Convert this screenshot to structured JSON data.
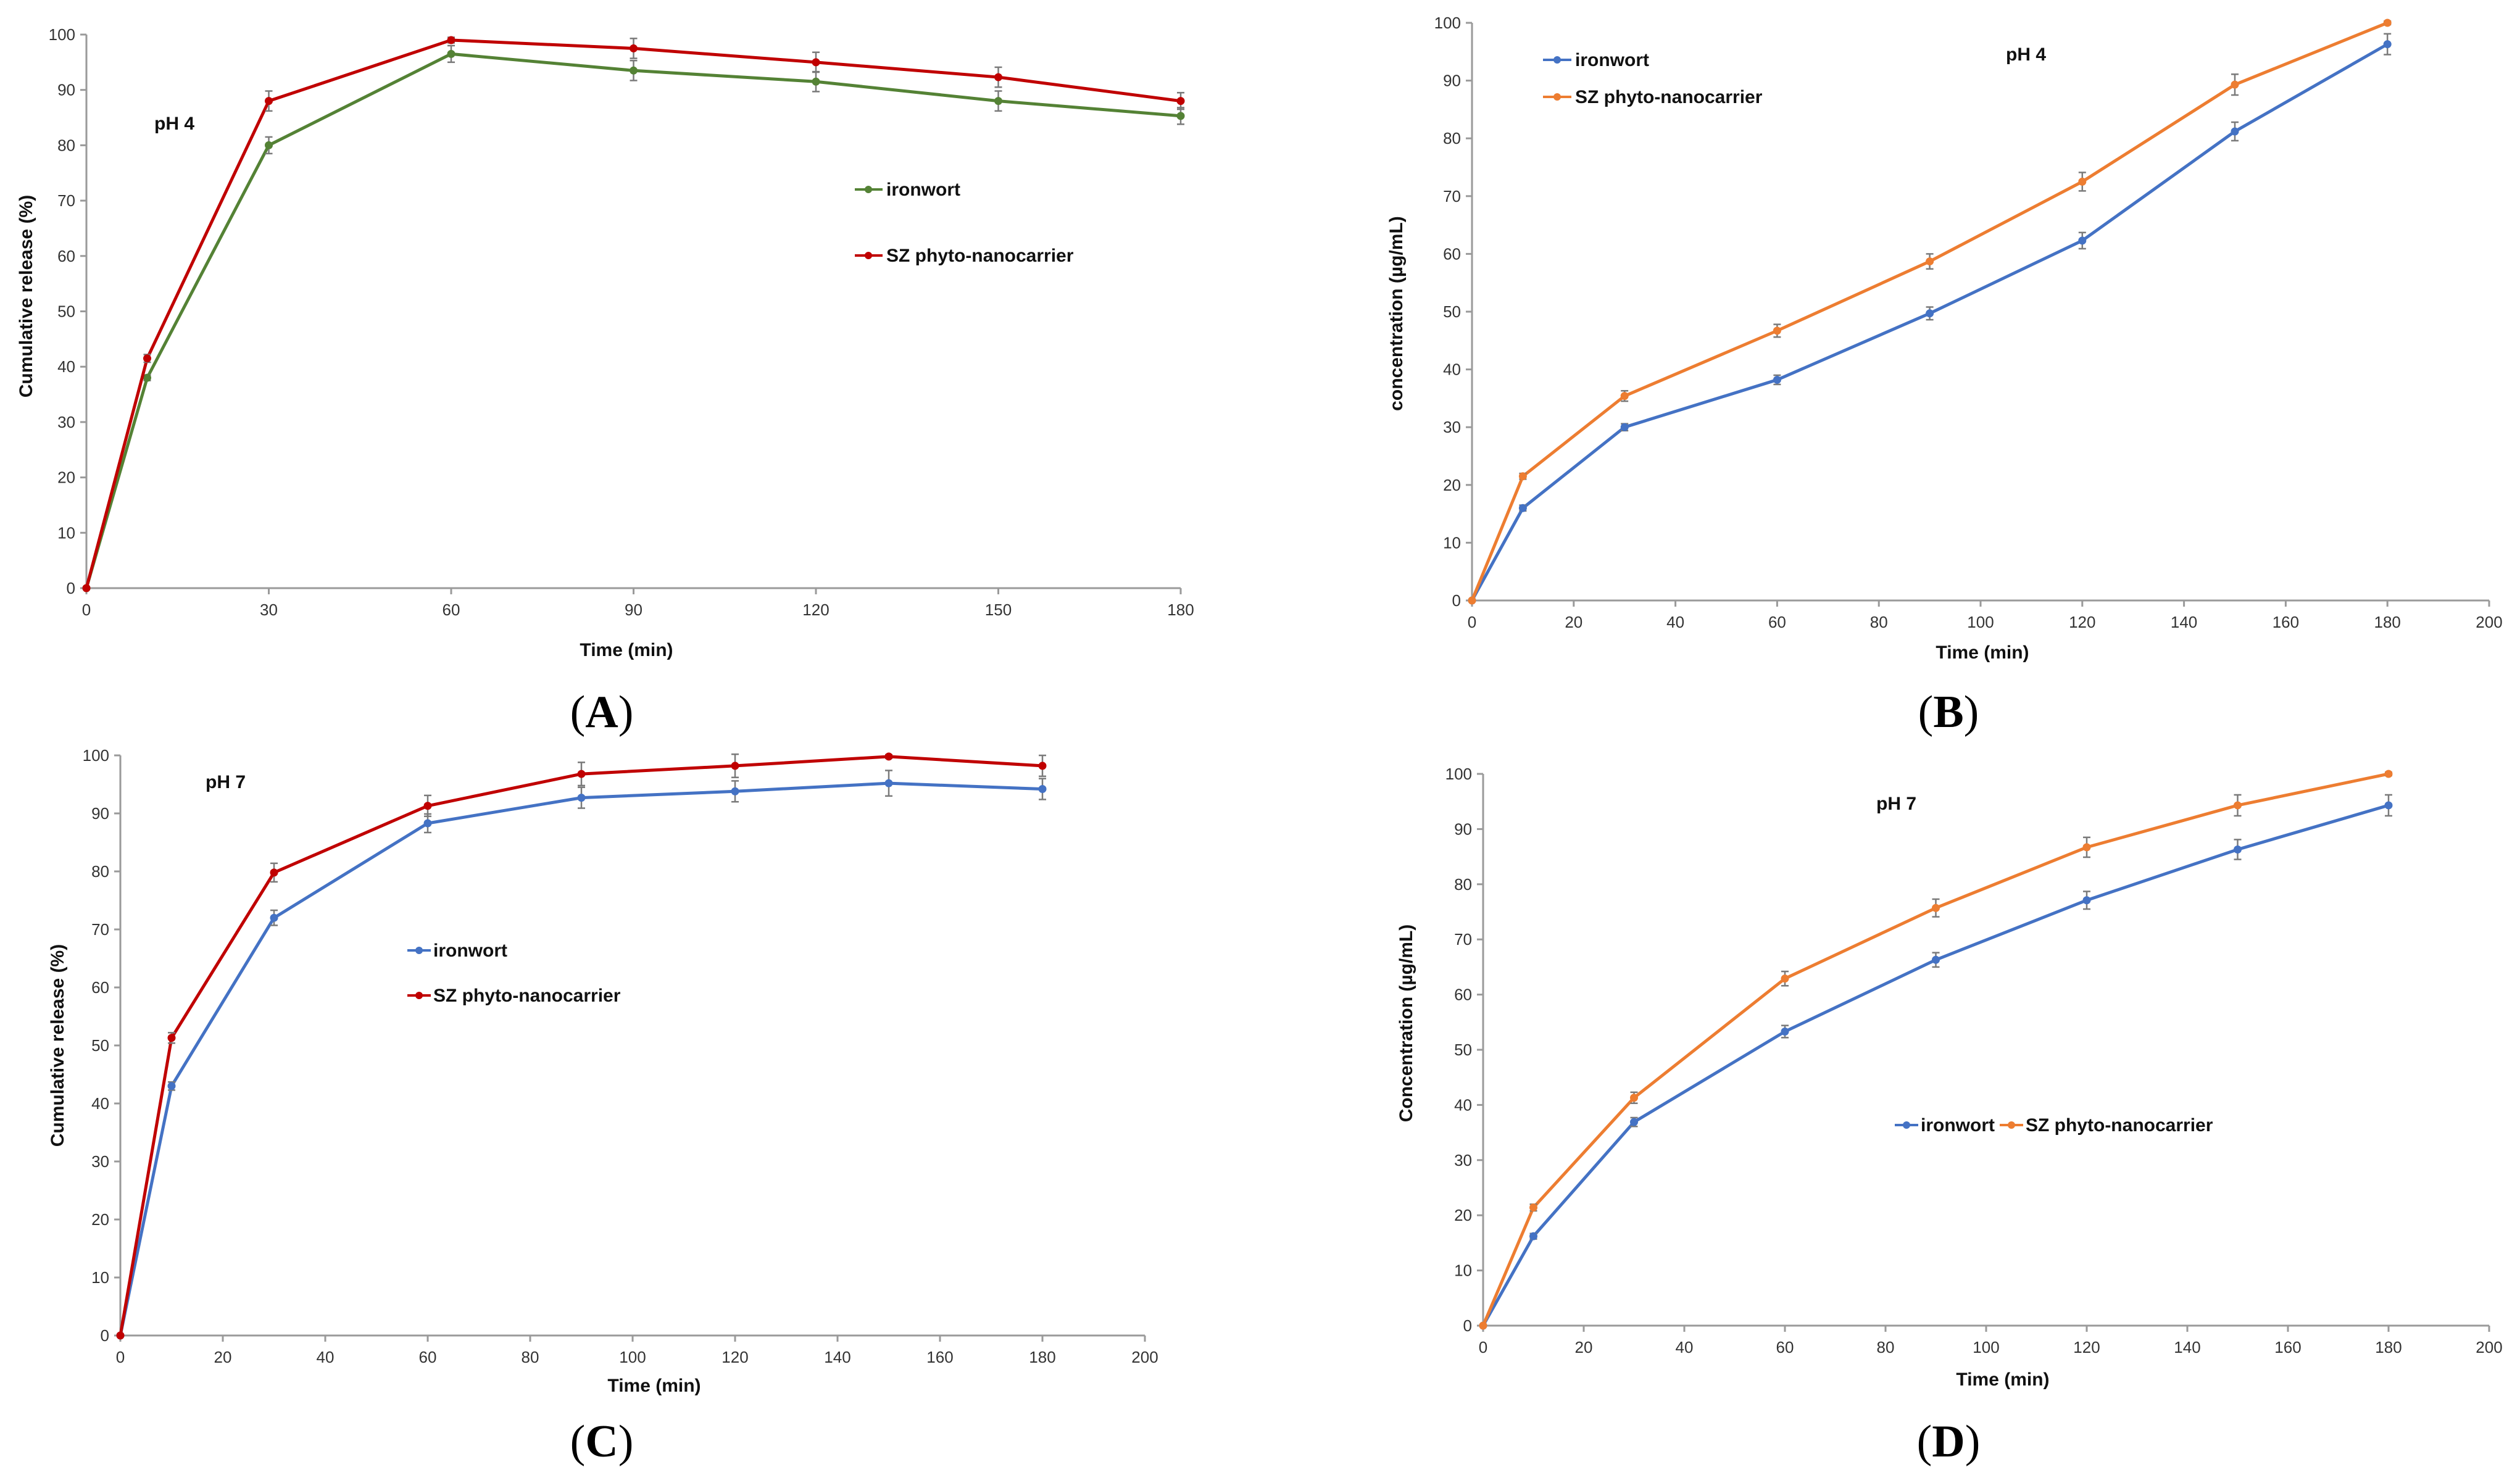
{
  "figure": {
    "panel_labels": [
      "A",
      "B",
      "C",
      "D"
    ]
  },
  "chart_data": [
    {
      "panel": "A",
      "type": "line",
      "annotation": "pH 4",
      "xlabel": "Time (min)",
      "ylabel": "Cumulative release (%)",
      "xlim": [
        0,
        180
      ],
      "ylim": [
        0,
        100
      ],
      "xticks": [
        0,
        30,
        60,
        90,
        120,
        150,
        180
      ],
      "yticks": [
        0,
        10,
        20,
        30,
        40,
        50,
        60,
        70,
        80,
        90,
        100
      ],
      "legend_position": "center-right",
      "series": [
        {
          "name": "ironwort",
          "color": "#548235",
          "marker": "circle",
          "x": [
            0,
            10,
            30,
            60,
            90,
            120,
            150,
            180
          ],
          "y": [
            0,
            38,
            80,
            96.5,
            93.5,
            91.5,
            88,
            85.3
          ],
          "err": [
            0,
            0.5,
            1.5,
            1.5,
            1.8,
            1.8,
            1.8,
            1.5
          ]
        },
        {
          "name": "SZ phyto-nanocarrier",
          "color": "#c00000",
          "marker": "circle",
          "x": [
            0,
            10,
            30,
            60,
            90,
            120,
            150,
            180
          ],
          "y": [
            0,
            41.5,
            88,
            99,
            97.5,
            95,
            92.3,
            88
          ],
          "err": [
            0,
            0.7,
            1.8,
            0.5,
            1.8,
            1.8,
            1.8,
            1.5
          ]
        }
      ]
    },
    {
      "panel": "B",
      "type": "line",
      "annotation": "pH 4",
      "xlabel": "Time (min)",
      "ylabel": "concentration  (µg/mL)",
      "xlim": [
        0,
        200
      ],
      "ylim": [
        0,
        100
      ],
      "xticks": [
        0,
        20,
        40,
        60,
        80,
        100,
        120,
        140,
        160,
        180,
        200
      ],
      "yticks": [
        0,
        10,
        20,
        30,
        40,
        50,
        60,
        70,
        80,
        90,
        100
      ],
      "legend_position": "top-left",
      "series": [
        {
          "name": "ironwort",
          "color": "#4472c4",
          "marker": "circle",
          "x": [
            0,
            10,
            30,
            60,
            90,
            120,
            150,
            180
          ],
          "y": [
            0,
            16,
            30,
            38.2,
            49.7,
            62.3,
            81.2,
            96.3
          ],
          "err": [
            0,
            0.5,
            0.6,
            0.8,
            1.1,
            1.4,
            1.6,
            1.8
          ]
        },
        {
          "name": "SZ phyto-nanocarrier",
          "color": "#ed7d31",
          "marker": "circle",
          "x": [
            0,
            10,
            30,
            60,
            90,
            120,
            150,
            180
          ],
          "y": [
            0,
            21.5,
            35.4,
            46.7,
            58.7,
            72.5,
            89.3,
            100
          ],
          "err": [
            0,
            0.5,
            0.9,
            1.1,
            1.3,
            1.6,
            1.8,
            0.3
          ]
        }
      ]
    },
    {
      "panel": "C",
      "type": "line",
      "annotation": "pH 7",
      "xlabel": "Time (min)",
      "ylabel": "Cumulative release (%)",
      "xlim": [
        0,
        200
      ],
      "ylim": [
        0,
        100
      ],
      "xticks": [
        0,
        20,
        40,
        60,
        80,
        100,
        120,
        140,
        160,
        180,
        200
      ],
      "yticks": [
        0,
        10,
        20,
        30,
        40,
        50,
        60,
        70,
        80,
        90,
        100
      ],
      "legend_position": "center",
      "series": [
        {
          "name": "ironwort",
          "color": "#4472c4",
          "marker": "circle",
          "x": [
            0,
            10,
            30,
            60,
            90,
            120,
            150,
            180
          ],
          "y": [
            0,
            43,
            72,
            88.3,
            92.7,
            93.8,
            95.2,
            94.2
          ],
          "err": [
            0,
            0.7,
            1.3,
            1.6,
            1.8,
            1.8,
            2.2,
            1.8
          ]
        },
        {
          "name": "SZ phyto-nanocarrier",
          "color": "#c00000",
          "marker": "circle",
          "x": [
            0,
            10,
            30,
            60,
            90,
            120,
            150,
            180
          ],
          "y": [
            0,
            51.3,
            79.8,
            91.3,
            96.8,
            98.2,
            99.8,
            98.2
          ],
          "err": [
            0,
            0.9,
            1.6,
            1.8,
            2.0,
            2.0,
            0.3,
            1.8
          ]
        }
      ]
    },
    {
      "panel": "D",
      "type": "line",
      "annotation": "pH 7",
      "xlabel": "Time (min)",
      "ylabel": "Concentration  (µg/mL)",
      "xlim": [
        0,
        200
      ],
      "ylim": [
        0,
        100
      ],
      "xticks": [
        0,
        20,
        40,
        60,
        80,
        100,
        120,
        140,
        160,
        180,
        200
      ],
      "yticks": [
        0,
        10,
        20,
        30,
        40,
        50,
        60,
        70,
        80,
        90,
        100
      ],
      "legend_position": "center-horizontal",
      "series": [
        {
          "name": "ironwort",
          "color": "#4472c4",
          "marker": "circle",
          "x": [
            0,
            10,
            30,
            60,
            90,
            120,
            150,
            180
          ],
          "y": [
            0,
            16.2,
            36.9,
            53.3,
            66.3,
            77.1,
            86.3,
            94.3
          ],
          "err": [
            0,
            0.5,
            0.8,
            1.1,
            1.3,
            1.6,
            1.8,
            1.9
          ]
        },
        {
          "name": "SZ phyto-nanocarrier",
          "color": "#ed7d31",
          "marker": "circle",
          "x": [
            0,
            10,
            30,
            60,
            90,
            120,
            150,
            180
          ],
          "y": [
            0,
            21.4,
            41.3,
            62.9,
            75.7,
            86.7,
            94.3,
            100
          ],
          "err": [
            0,
            0.6,
            1.0,
            1.3,
            1.6,
            1.8,
            1.9,
            0.3
          ]
        }
      ]
    }
  ]
}
